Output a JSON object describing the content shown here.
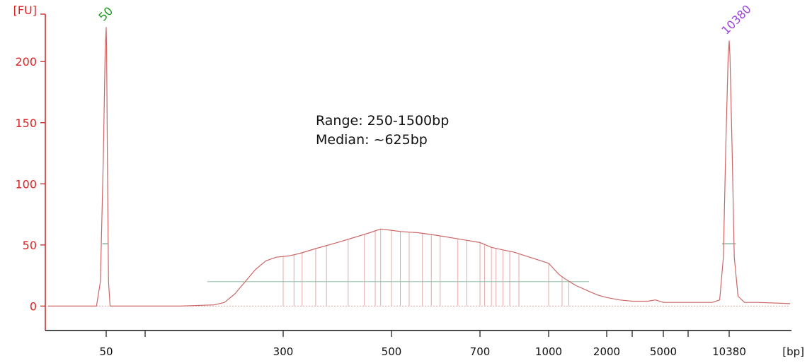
{
  "chart_data": {
    "type": "line",
    "title": "",
    "ylabel": "[FU]",
    "xlabel": "[bp]",
    "ylim": [
      -20,
      240
    ],
    "yticks": [
      0,
      50,
      100,
      150,
      200
    ],
    "xticks": [
      {
        "label": "50",
        "x": 50
      },
      {
        "label": "",
        "x": 100
      },
      {
        "label": "300",
        "x": 300
      },
      {
        "label": "500",
        "x": 500
      },
      {
        "label": "700",
        "x": 700
      },
      {
        "label": "1000",
        "x": 1000
      },
      {
        "label": "2000",
        "x": 2000
      },
      {
        "label": "",
        "x": 3000
      },
      {
        "label": "5000",
        "x": 5000
      },
      {
        "label": "",
        "x": 7000
      },
      {
        "label": "10380",
        "x": 10380
      }
    ],
    "peaks": [
      {
        "label": "50",
        "bp": 50,
        "fu": 228,
        "color": "#1f9a1f"
      },
      {
        "label": "10380",
        "bp": 10380,
        "fu": 217,
        "color": "#9b44e0"
      }
    ],
    "series": [
      {
        "color": "#cc6666",
        "points": [
          [
            20,
            0
          ],
          [
            45,
            0
          ],
          [
            47,
            20
          ],
          [
            48.5,
            120
          ],
          [
            49.5,
            210
          ],
          [
            50,
            228
          ],
          [
            50.5,
            210
          ],
          [
            51.5,
            120
          ],
          [
            53,
            20
          ],
          [
            55,
            0
          ],
          [
            150,
            0
          ],
          [
            200,
            1
          ],
          [
            215,
            3
          ],
          [
            230,
            10
          ],
          [
            245,
            20
          ],
          [
            260,
            30
          ],
          [
            275,
            37
          ],
          [
            290,
            40
          ],
          [
            310,
            41
          ],
          [
            330,
            43
          ],
          [
            360,
            47
          ],
          [
            400,
            52
          ],
          [
            430,
            56
          ],
          [
            460,
            60
          ],
          [
            480,
            63
          ],
          [
            500,
            62
          ],
          [
            520,
            61
          ],
          [
            560,
            60
          ],
          [
            600,
            58
          ],
          [
            650,
            55
          ],
          [
            700,
            52
          ],
          [
            750,
            48
          ],
          [
            800,
            46
          ],
          [
            850,
            44
          ],
          [
            900,
            41
          ],
          [
            950,
            38
          ],
          [
            1000,
            35
          ],
          [
            1050,
            32
          ],
          [
            1100,
            29
          ],
          [
            1150,
            26
          ],
          [
            1250,
            22
          ],
          [
            1400,
            17
          ],
          [
            1600,
            12
          ],
          [
            1800,
            9
          ],
          [
            2000,
            7
          ],
          [
            2500,
            5
          ],
          [
            3000,
            4
          ],
          [
            4000,
            4
          ],
          [
            4500,
            5
          ],
          [
            5000,
            3
          ],
          [
            6000,
            3
          ],
          [
            7000,
            3
          ],
          [
            8000,
            3
          ],
          [
            9000,
            3
          ],
          [
            9600,
            5
          ],
          [
            9900,
            40
          ],
          [
            10100,
            130
          ],
          [
            10300,
            205
          ],
          [
            10380,
            217
          ],
          [
            10450,
            205
          ],
          [
            10650,
            130
          ],
          [
            10850,
            40
          ],
          [
            11200,
            8
          ],
          [
            11800,
            3
          ],
          [
            13000,
            3
          ],
          [
            16000,
            2
          ]
        ]
      }
    ],
    "markers": [
      {
        "type": "hline",
        "y": 51,
        "x_from": 48,
        "x_to": 52,
        "color": "#6fa88f"
      },
      {
        "type": "hline",
        "y": 51,
        "x_from": 9800,
        "x_to": 11000,
        "color": "#6fa88f"
      },
      {
        "type": "hline",
        "y": 20,
        "x_from": 190,
        "x_to": 1600,
        "color": "#9fc9b5"
      }
    ],
    "region_lines_bp": [
      300,
      320,
      335,
      360,
      380,
      420,
      450,
      470,
      480,
      500,
      520,
      540,
      570,
      590,
      610,
      650,
      670,
      700,
      720,
      750,
      770,
      800,
      830,
      870,
      1000,
      1200,
      1300
    ]
  },
  "annotation": {
    "line1": "Range: 250-1500bp",
    "line2": "Median: ~625bp"
  }
}
